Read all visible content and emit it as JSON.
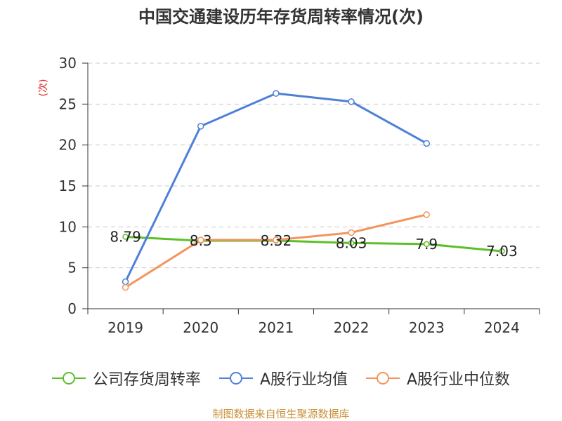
{
  "chart_data": {
    "type": "line",
    "title": "中国交通建设历年存货周转率情况(次)",
    "xlabel": "",
    "ylabel": "(次)",
    "categories": [
      "2019",
      "2020",
      "2021",
      "2022",
      "2023",
      "2024"
    ],
    "ylim": [
      0,
      30
    ],
    "yticks": [
      0,
      5,
      10,
      15,
      20,
      25,
      30
    ],
    "grid": true,
    "legend_position": "bottom",
    "series": [
      {
        "name": "公司存货周转率",
        "color": "#5cbf2a",
        "show_data_labels": true,
        "values": [
          8.79,
          8.3,
          8.32,
          8.03,
          7.9,
          7.03
        ]
      },
      {
        "name": "A股行业均值",
        "color": "#4e80d8",
        "show_data_labels": false,
        "values": [
          3.3,
          22.3,
          26.3,
          25.3,
          20.2,
          null
        ]
      },
      {
        "name": "A股行业中位数",
        "color": "#f4945c",
        "show_data_labels": false,
        "values": [
          2.6,
          8.4,
          8.4,
          9.3,
          11.5,
          null
        ]
      }
    ]
  },
  "footer": {
    "source": "制图数据来自恒生聚源数据库"
  }
}
